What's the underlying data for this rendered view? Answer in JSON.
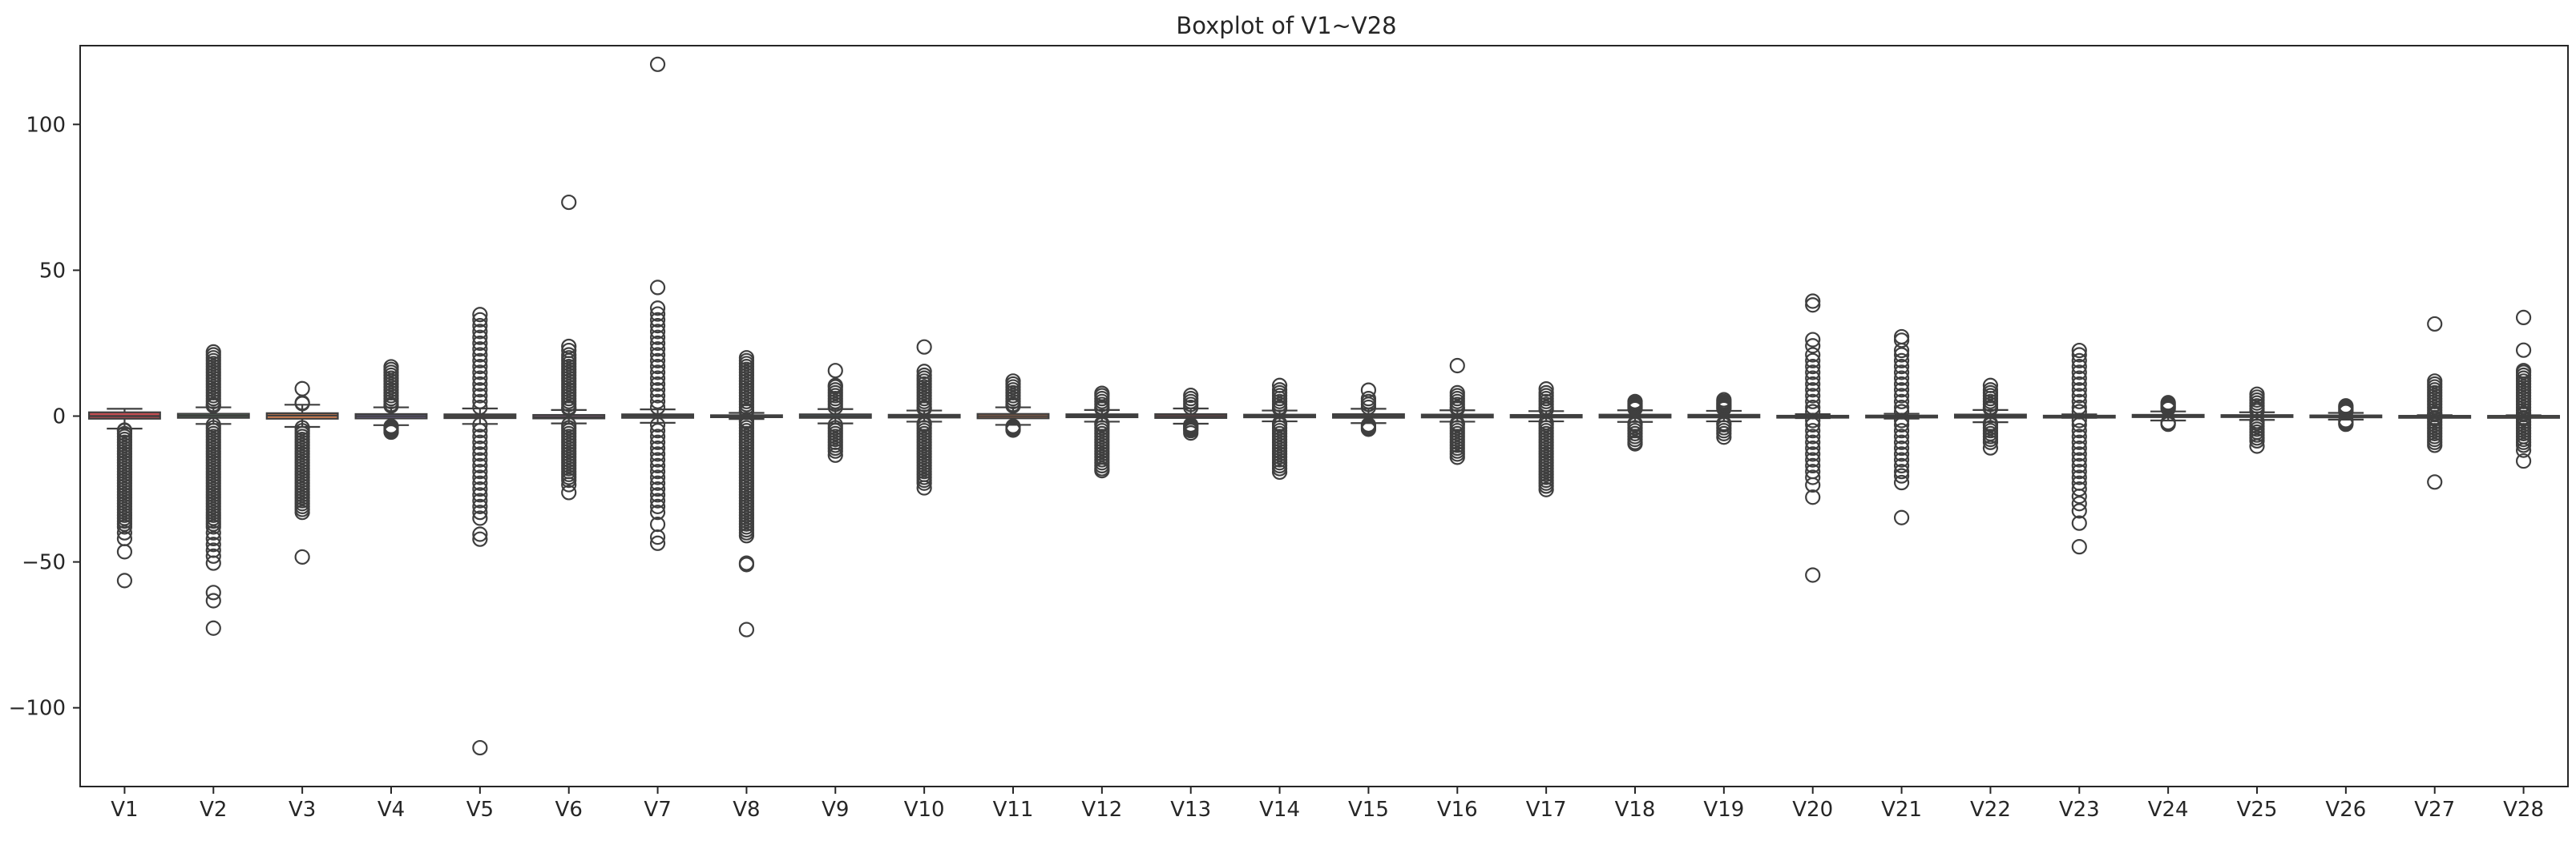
{
  "chart_data": {
    "type": "boxplot",
    "title": "Boxplot of V1~V28",
    "xlabel": "",
    "ylabel": "",
    "ylim": [
      -127,
      127
    ],
    "y_ticks": [
      -100,
      -50,
      0,
      50,
      100
    ],
    "y_tick_labels": [
      "−100",
      "−50",
      "0",
      "50",
      "100"
    ],
    "grid": false,
    "legend": "none",
    "categories": [
      "V1",
      "V2",
      "V3",
      "V4",
      "V5",
      "V6",
      "V7",
      "V8",
      "V9",
      "V10",
      "V11",
      "V12",
      "V13",
      "V14",
      "V15",
      "V16",
      "V17",
      "V18",
      "V19",
      "V20",
      "V21",
      "V22",
      "V23",
      "V24",
      "V25",
      "V26",
      "V27",
      "V28"
    ],
    "series": [
      {
        "category": "V1",
        "color": "#c44e52",
        "q1": -0.9,
        "median": 0.0,
        "q3": 1.3,
        "whisker_low": -4.3,
        "whisker_high": 2.5,
        "outliers": [
          -4.8,
          -5,
          -6,
          -7,
          -8,
          -9,
          -10,
          -11,
          -12,
          -13,
          -14,
          -15,
          -16,
          -17,
          -18,
          -19,
          -20,
          -21,
          -22,
          -23,
          -24,
          -25,
          -26,
          -27,
          -28,
          -29,
          -30,
          -31,
          -32,
          -33,
          -34,
          -35,
          -36,
          -37,
          -38,
          -40,
          -42,
          -46.5,
          -56.4
        ]
      },
      {
        "category": "V2",
        "color": "#5f9e6e",
        "q1": -0.6,
        "median": 0.1,
        "q3": 0.8,
        "whisker_low": -2.7,
        "whisker_high": 3.0,
        "outliers": [
          22,
          21,
          20,
          19,
          18,
          17,
          16,
          15,
          14,
          13,
          12,
          11,
          10,
          9,
          8,
          7,
          6,
          5,
          4,
          3.5,
          -3,
          -4,
          -5,
          -6,
          -7,
          -8,
          -9,
          -10,
          -11,
          -12,
          -13,
          -14,
          -15,
          -16,
          -17,
          -18,
          -19,
          -20,
          -21,
          -22,
          -23,
          -24,
          -25,
          -26,
          -27,
          -28,
          -29,
          -30,
          -31,
          -32,
          -33,
          -34,
          -35,
          -36,
          -37,
          -38,
          -40,
          -42,
          -44,
          -46,
          -48,
          -50.4,
          -60.5,
          -63.3,
          -72.7
        ]
      },
      {
        "category": "V3",
        "color": "#dd8452",
        "q1": -0.9,
        "median": 0.2,
        "q3": 1.0,
        "whisker_low": -3.7,
        "whisker_high": 3.9,
        "outliers": [
          9.4,
          4.3,
          4.6,
          -4,
          -5,
          -6,
          -7,
          -8,
          -9,
          -10,
          -11,
          -12,
          -13,
          -14,
          -15,
          -16,
          -17,
          -18,
          -19,
          -20,
          -21,
          -22,
          -23,
          -24,
          -25,
          -26,
          -27,
          -28,
          -29,
          -30,
          -31,
          -32,
          -33,
          -48.3
        ]
      },
      {
        "category": "V4",
        "color": "#8172b3",
        "q1": -0.8,
        "median": -0.02,
        "q3": 0.7,
        "whisker_low": -3.1,
        "whisker_high": 3.0,
        "outliers": [
          3.5,
          4,
          5,
          6,
          7,
          8,
          9,
          10,
          11,
          12,
          13,
          14,
          15,
          16,
          16.9,
          -3.5,
          -4,
          -4.5,
          -5,
          -5.5
        ]
      },
      {
        "category": "V5",
        "color": "#937860",
        "q1": -0.7,
        "median": -0.05,
        "q3": 0.6,
        "whisker_low": -2.7,
        "whisker_high": 2.6,
        "outliers": [
          34.8,
          33,
          31,
          29,
          27,
          25,
          23,
          21,
          19,
          17,
          15,
          13,
          11,
          9,
          7,
          5,
          3,
          -3,
          -5,
          -7,
          -9,
          -11,
          -13,
          -15,
          -17,
          -19,
          -21,
          -23,
          -25,
          -27,
          -29,
          -31,
          -33,
          -35,
          -40.5,
          -42.2,
          -113.7
        ]
      },
      {
        "category": "V6",
        "color": "#da8bc3",
        "q1": -0.8,
        "median": -0.3,
        "q3": 0.4,
        "whisker_low": -2.5,
        "whisker_high": 2.1,
        "outliers": [
          73.3,
          23.9,
          22.5,
          21,
          20,
          19,
          18,
          17,
          16,
          15,
          14,
          13,
          12,
          11,
          10,
          9,
          8,
          7,
          6,
          5,
          4,
          3,
          2.5,
          -3,
          -4,
          -5,
          -6,
          -7,
          -8,
          -9,
          -10,
          -11,
          -12,
          -13,
          -14,
          -15,
          -16,
          -17,
          -18,
          -19,
          -20,
          -21,
          -22,
          -23.5,
          -26.2
        ]
      },
      {
        "category": "V7",
        "color": "#8c8c8c",
        "q1": -0.6,
        "median": 0.04,
        "q3": 0.6,
        "whisker_low": -2.3,
        "whisker_high": 2.3,
        "outliers": [
          120.6,
          44.1,
          37,
          35,
          33,
          31,
          29,
          27,
          25,
          23,
          21,
          19,
          17,
          15,
          13,
          11,
          9,
          7,
          5,
          3,
          -3,
          -5,
          -7,
          -9,
          -11,
          -13,
          -15,
          -17,
          -19,
          -21,
          -23,
          -25,
          -27,
          -29,
          -31,
          -33,
          -37.1,
          -41.5,
          -43.6
        ]
      },
      {
        "category": "V8",
        "color": "#ccb974",
        "q1": -0.2,
        "median": 0.02,
        "q3": 0.3,
        "whisker_low": -1.0,
        "whisker_high": 1.1,
        "outliers": [
          20,
          19,
          18,
          17,
          16,
          15,
          14,
          13,
          12,
          11,
          10,
          9,
          8,
          7,
          6,
          5,
          4,
          3,
          2,
          1.5,
          -1.5,
          -2,
          -3,
          -4,
          -5,
          -6,
          -7,
          -8,
          -9,
          -10,
          -11,
          -12,
          -13,
          -14,
          -15,
          -16,
          -17,
          -18,
          -19,
          -20,
          -21,
          -22,
          -23,
          -24,
          -25,
          -26,
          -27,
          -28,
          -29,
          -30,
          -31,
          -32,
          -33,
          -34,
          -35,
          -36,
          -37,
          -38,
          -39,
          -40,
          -41,
          -50.4,
          -50.9,
          -73.2
        ]
      },
      {
        "category": "V9",
        "color": "#64b5cd",
        "q1": -0.6,
        "median": -0.05,
        "q3": 0.6,
        "whisker_low": -2.5,
        "whisker_high": 2.4,
        "outliers": [
          15.6,
          10.5,
          10,
          9,
          8,
          7,
          6,
          5,
          4,
          3,
          -3,
          -4,
          -5,
          -6,
          -7,
          -8,
          -9,
          -10,
          -11,
          -12,
          -13.4
        ]
      },
      {
        "category": "V10",
        "color": "#4c72b0",
        "q1": -0.5,
        "median": -0.09,
        "q3": 0.45,
        "whisker_low": -1.9,
        "whisker_high": 1.9,
        "outliers": [
          23.7,
          15.3,
          14,
          13,
          12,
          11,
          10,
          9,
          8,
          7,
          6,
          5,
          4,
          3,
          2.5,
          -2.5,
          -3,
          -4,
          -5,
          -6,
          -7,
          -8,
          -9,
          -10,
          -11,
          -12,
          -13,
          -14,
          -15,
          -16,
          -17,
          -18,
          -19,
          -20,
          -21,
          -22,
          -23,
          -24.6
        ]
      },
      {
        "category": "V11",
        "color": "#dd8452",
        "q1": -0.76,
        "median": -0.03,
        "q3": 0.74,
        "whisker_low": -3.0,
        "whisker_high": 3.0,
        "outliers": [
          12.0,
          11,
          10,
          9,
          8,
          7,
          6,
          5,
          4,
          3.5,
          -3.5,
          -4,
          -4.5,
          -4.8
        ]
      },
      {
        "category": "V12",
        "color": "#55a868",
        "q1": -0.4,
        "median": 0.14,
        "q3": 0.62,
        "whisker_low": -1.9,
        "whisker_high": 2.1,
        "outliers": [
          7.8,
          7,
          6,
          5,
          4,
          3,
          2.5,
          -2.5,
          -3,
          -4,
          -5,
          -6,
          -7,
          -8,
          -9,
          -10,
          -11,
          -12,
          -13,
          -14,
          -15,
          -16,
          -17,
          -18,
          -18.7
        ]
      },
      {
        "category": "V13",
        "color": "#c44e52",
        "q1": -0.65,
        "median": -0.01,
        "q3": 0.66,
        "whisker_low": -2.6,
        "whisker_high": 2.6,
        "outliers": [
          7.1,
          6,
          5,
          4,
          3,
          -3,
          -3.5,
          -4,
          -4.5,
          -5,
          -5.8
        ]
      },
      {
        "category": "V14",
        "color": "#8172b3",
        "q1": -0.43,
        "median": 0.05,
        "q3": 0.49,
        "whisker_low": -1.8,
        "whisker_high": 1.9,
        "outliers": [
          10.5,
          9,
          8,
          7,
          6,
          5,
          4,
          3,
          2.5,
          -2.5,
          -3,
          -4,
          -5,
          -6,
          -7,
          -8,
          -9,
          -10,
          -11,
          -12,
          -13,
          -14,
          -15,
          -16,
          -17,
          -18,
          -19.2
        ]
      },
      {
        "category": "V15",
        "color": "#937860",
        "q1": -0.58,
        "median": 0.05,
        "q3": 0.65,
        "whisker_low": -2.4,
        "whisker_high": 2.5,
        "outliers": [
          8.9,
          6,
          5,
          4,
          3,
          -3,
          -3.5,
          -4,
          -4.5
        ]
      },
      {
        "category": "V16",
        "color": "#da8bc3",
        "q1": -0.47,
        "median": 0.07,
        "q3": 0.52,
        "whisker_low": -1.9,
        "whisker_high": 2.0,
        "outliers": [
          17.3,
          8,
          7,
          6,
          5,
          4,
          3,
          2.5,
          -2.5,
          -3,
          -4,
          -5,
          -6,
          -7,
          -8,
          -9,
          -10,
          -11,
          -12,
          -13,
          -14.1
        ]
      },
      {
        "category": "V17",
        "color": "#8c8c8c",
        "q1": -0.48,
        "median": -0.07,
        "q3": 0.4,
        "whisker_low": -1.8,
        "whisker_high": 1.7,
        "outliers": [
          9.3,
          8,
          7,
          6,
          5,
          4,
          3,
          2.2,
          -2.2,
          -3,
          -4,
          -5,
          -6,
          -7,
          -8,
          -9,
          -10,
          -11,
          -12,
          -13,
          -14,
          -15,
          -16,
          -17,
          -18,
          -19,
          -20,
          -21,
          -22,
          -23,
          -24,
          -25.2
        ]
      },
      {
        "category": "V18",
        "color": "#ccb974",
        "q1": -0.5,
        "median": 0.0,
        "q3": 0.5,
        "whisker_low": -2.0,
        "whisker_high": 2.0,
        "outliers": [
          5.0,
          4.5,
          4,
          3.5,
          3,
          2.5,
          -2.5,
          -3,
          -4,
          -5,
          -6,
          -7,
          -8,
          -9,
          -9.5
        ]
      },
      {
        "category": "V19",
        "color": "#64b5cd",
        "q1": -0.46,
        "median": 0.0,
        "q3": 0.46,
        "whisker_low": -1.8,
        "whisker_high": 1.8,
        "outliers": [
          5.6,
          5,
          4.5,
          4,
          3.5,
          3,
          2.5,
          -2.5,
          -3,
          -4,
          -5,
          -6,
          -7.2
        ]
      },
      {
        "category": "V20",
        "color": "#4c72b0",
        "q1": -0.21,
        "median": -0.06,
        "q3": 0.13,
        "whisker_low": -0.7,
        "whisker_high": 0.65,
        "outliers": [
          39.4,
          38.1,
          26.2,
          24.1,
          21,
          19,
          17,
          15,
          13,
          11,
          9,
          7,
          5,
          3,
          1.5,
          -1.5,
          -3,
          -5,
          -7,
          -9,
          -11,
          -13,
          -15,
          -17,
          -19,
          -21,
          -23.6,
          -27.8,
          -54.5
        ]
      },
      {
        "category": "V21",
        "color": "#dd8452",
        "q1": -0.23,
        "median": -0.03,
        "q3": 0.19,
        "whisker_low": -0.85,
        "whisker_high": 0.8,
        "outliers": [
          27.2,
          26,
          22.5,
          21,
          19,
          17,
          15,
          13,
          11,
          9,
          7,
          5,
          3,
          1.5,
          -1.5,
          -3,
          -5,
          -7,
          -9,
          -11,
          -13,
          -15,
          -17,
          -19,
          -20.5,
          -22.8,
          -34.8
        ]
      },
      {
        "category": "V22",
        "color": "#55a868",
        "q1": -0.54,
        "median": 0.01,
        "q3": 0.53,
        "whisker_low": -2.1,
        "whisker_high": 2.1,
        "outliers": [
          10.5,
          9,
          8,
          7,
          6,
          5,
          4,
          3,
          2.5,
          -2.5,
          -3,
          -4,
          -5,
          -6,
          -7,
          -8,
          -9,
          -10.9
        ]
      },
      {
        "category": "V23",
        "color": "#c44e52",
        "q1": -0.16,
        "median": -0.01,
        "q3": 0.15,
        "whisker_low": -0.6,
        "whisker_high": 0.6,
        "outliers": [
          22.5,
          21,
          19,
          17,
          15,
          13,
          11,
          9,
          7,
          5,
          3,
          1.5,
          -1.5,
          -3,
          -5,
          -7,
          -9,
          -11,
          -13,
          -15,
          -17,
          -19,
          -21,
          -23,
          -25,
          -27.5,
          -30,
          -32.5,
          -36.7,
          -44.8
        ]
      },
      {
        "category": "V24",
        "color": "#8172b3",
        "q1": -0.35,
        "median": 0.04,
        "q3": 0.44,
        "whisker_low": -1.5,
        "whisker_high": 1.6,
        "outliers": [
          4.6,
          4.2,
          3.8,
          3.4,
          3,
          2.5,
          -2.2,
          -2.5,
          -2.8
        ]
      },
      {
        "category": "V25",
        "color": "#937860",
        "q1": -0.32,
        "median": 0.02,
        "q3": 0.35,
        "whisker_low": -1.3,
        "whisker_high": 1.3,
        "outliers": [
          7.5,
          6.5,
          5.5,
          4.5,
          3.5,
          2.5,
          1.8,
          -1.8,
          -2.5,
          -3.5,
          -4.5,
          -5.5,
          -6.5,
          -7.5,
          -8.5,
          -10.3
        ]
      },
      {
        "category": "V26",
        "color": "#da8bc3",
        "q1": -0.33,
        "median": -0.05,
        "q3": 0.24,
        "whisker_low": -1.2,
        "whisker_high": 1.1,
        "outliers": [
          3.5,
          3,
          2.5,
          2,
          1.5,
          -1.5,
          -2,
          -2.5,
          -2.8
        ]
      },
      {
        "category": "V27",
        "color": "#8c8c8c",
        "q1": -0.07,
        "median": 0.0,
        "q3": 0.09,
        "whisker_low": -0.3,
        "whisker_high": 0.3,
        "outliers": [
          31.6,
          12,
          11,
          10,
          9,
          8,
          7,
          6,
          5,
          4,
          3,
          2,
          1,
          0.5,
          -0.5,
          -1,
          -2,
          -3,
          -4,
          -5,
          -6,
          -7,
          -8,
          -9,
          -10,
          -22.6
        ]
      },
      {
        "category": "V28",
        "color": "#ccb974",
        "q1": -0.05,
        "median": 0.01,
        "q3": 0.08,
        "whisker_low": -0.25,
        "whisker_high": 0.27,
        "outliers": [
          33.8,
          22.6,
          15.6,
          15,
          14,
          13,
          12,
          11,
          10,
          9,
          8,
          7,
          6,
          5,
          4,
          3,
          2,
          1,
          0.5,
          -0.5,
          -1,
          -2,
          -3,
          -4,
          -5,
          -6,
          -7,
          -8,
          -9,
          -10,
          -11.7,
          -15.4
        ]
      }
    ]
  }
}
